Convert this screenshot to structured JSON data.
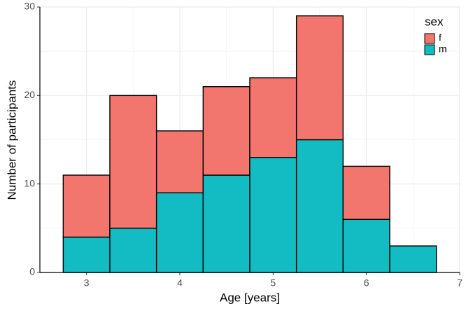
{
  "chart_data": {
    "type": "histogram",
    "x_label": "Age [years]",
    "y_label": "Number of participants",
    "bins": [
      2.75,
      3.25,
      3.75,
      4.25,
      4.75,
      5.25,
      5.75,
      6.25,
      6.75
    ],
    "series": [
      {
        "name": "f",
        "color": "#f3766e",
        "values": [
          7,
          15,
          7,
          10,
          9,
          14,
          6,
          0
        ]
      },
      {
        "name": "m",
        "color": "#12bcc2",
        "values": [
          4,
          5,
          9,
          11,
          13,
          15,
          6,
          3
        ]
      }
    ],
    "stacked": true,
    "legend_title": "sex",
    "legend": "top-right",
    "xlim": [
      2.5,
      7
    ],
    "xticks": [
      3,
      4,
      5,
      6,
      7
    ],
    "ylim": [
      0,
      30
    ],
    "yticks": [
      0,
      10,
      20,
      30
    ],
    "grid": true
  }
}
